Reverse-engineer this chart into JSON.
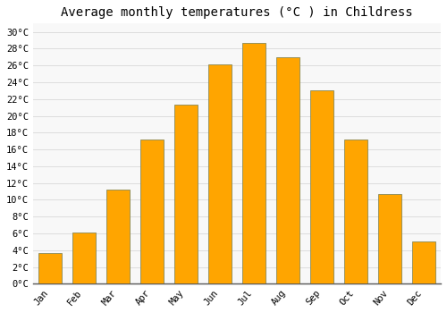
{
  "title": "Average monthly temperatures (°C ) in Childress",
  "months": [
    "Jan",
    "Feb",
    "Mar",
    "Apr",
    "May",
    "Jun",
    "Jul",
    "Aug",
    "Sep",
    "Oct",
    "Nov",
    "Dec"
  ],
  "values": [
    3.7,
    6.1,
    11.2,
    17.2,
    21.3,
    26.1,
    28.7,
    27.0,
    23.0,
    17.2,
    10.7,
    5.1
  ],
  "bar_color": "#FFA500",
  "bar_edge_color": "#888855",
  "background_color": "#FFFFFF",
  "plot_bg_color": "#F8F8F8",
  "ylim": [
    0,
    31
  ],
  "yticks": [
    0,
    2,
    4,
    6,
    8,
    10,
    12,
    14,
    16,
    18,
    20,
    22,
    24,
    26,
    28,
    30
  ],
  "ytick_labels": [
    "0°C",
    "2°C",
    "4°C",
    "6°C",
    "8°C",
    "10°C",
    "12°C",
    "14°C",
    "16°C",
    "18°C",
    "20°C",
    "22°C",
    "24°C",
    "26°C",
    "28°C",
    "30°C"
  ],
  "title_fontsize": 10,
  "tick_fontsize": 7.5,
  "grid_color": "#DDDDDD",
  "font_family": "monospace",
  "bar_width": 0.7
}
